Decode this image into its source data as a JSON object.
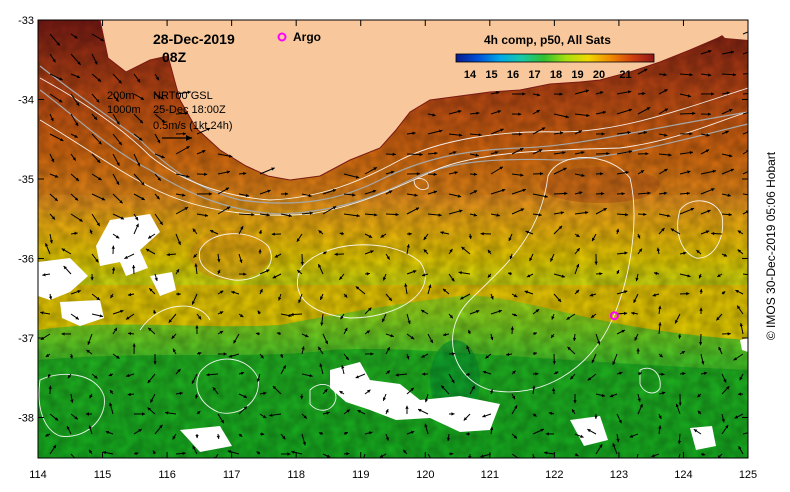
{
  "header": {
    "date": "28-Dec-2019",
    "time": "08Z",
    "argo_label": "Argo",
    "product": "4h comp, p50, All Sats"
  },
  "colorbar": {
    "ticks": [
      "14",
      "15",
      "16",
      "17",
      "18",
      "19",
      "20",
      "21"
    ],
    "colors": [
      "#0a1a8c",
      "#0050d8",
      "#00a8e8",
      "#18c8a8",
      "#30c030",
      "#a8e010",
      "#f0d800",
      "#f08c00",
      "#d04010",
      "#901818"
    ]
  },
  "altimetry": {
    "contour_200": "200m",
    "contour_1000": "1000m",
    "source": "NRT00 GSL",
    "date": "25-Dec 18:00Z",
    "vector_scale": "0.5m/s (1kt 24h)"
  },
  "axes": {
    "x_ticks": [
      "114",
      "115",
      "116",
      "117",
      "118",
      "119",
      "120",
      "121",
      "122",
      "123",
      "124",
      "125"
    ],
    "y_ticks": [
      "-33",
      "-34",
      "-35",
      "-36",
      "-37",
      "-38"
    ],
    "lon_range": [
      114,
      125
    ],
    "lat_range": [
      -38.5,
      -33
    ]
  },
  "argo_floats": [
    {
      "lon": 122.93,
      "lat": -36.72
    }
  ],
  "credit": "© IMOS 30-Dec-2019 05:06 Hobart",
  "colors": {
    "land": "#f8c89c",
    "argo": "#ff00ff",
    "contour": "#ffffff",
    "shelf_line": "#a8a8a8"
  }
}
